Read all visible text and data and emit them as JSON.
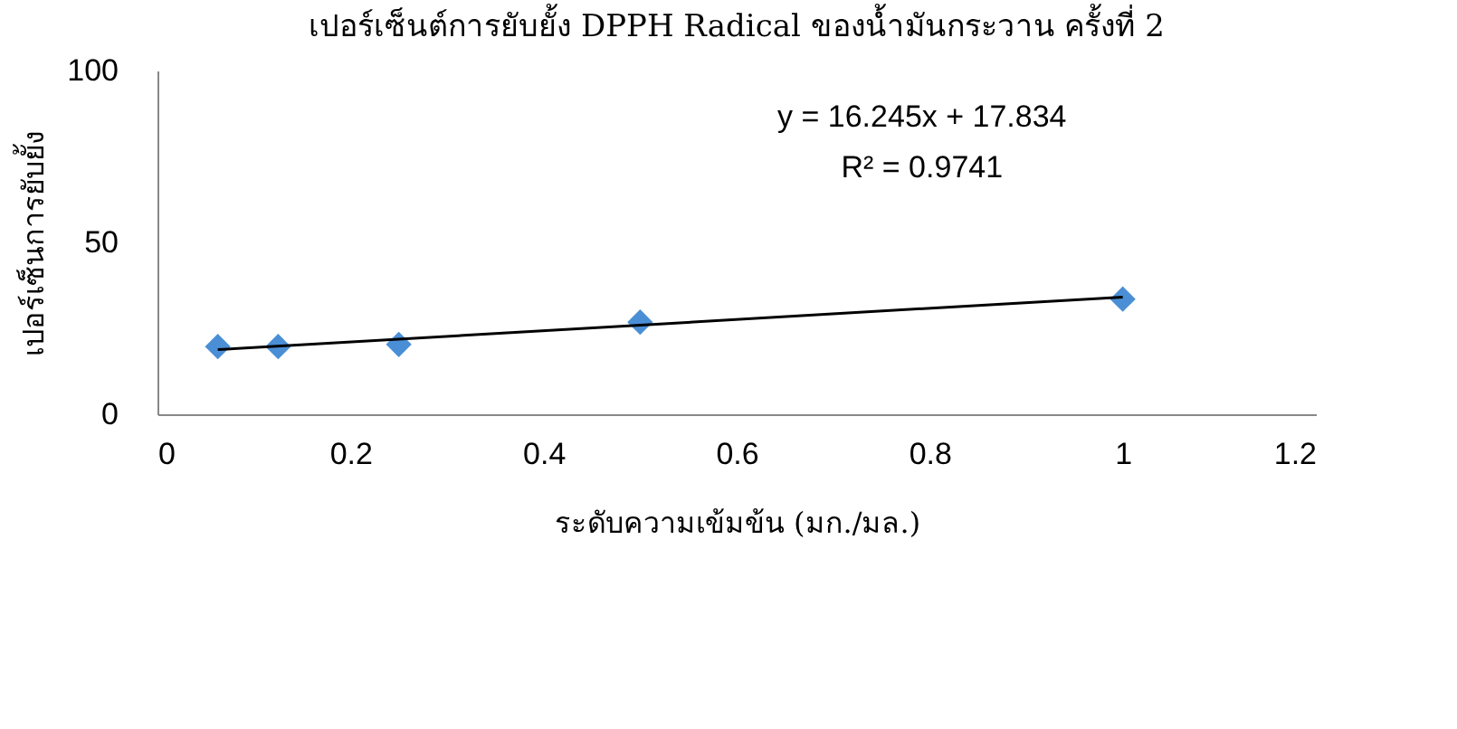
{
  "chart_data": {
    "type": "scatter",
    "title": "เปอร์เซ็นต์การยับยั้ง DPPH Radical ของน้ำมันกระวาน ครั้งที่ 2",
    "xlabel": "ระดับความเข้มข้น (มก./มล.)",
    "ylabel": "เปอร์เซ็นการยับยั้ง",
    "annotations": [
      "y = 16.245x + 17.834",
      "R² = 0.9741"
    ],
    "x": [
      0.0625,
      0.125,
      0.25,
      0.5,
      1
    ],
    "series": [
      {
        "color": "#4a8fd6",
        "values": [
          19.7,
          19.7,
          20.3,
          26.8,
          33.5
        ],
        "marker": "diamond"
      },
      {
        "type": "line",
        "color": "#000000",
        "x": [
          0.0625,
          1
        ],
        "values": [
          18.8,
          34.1
        ],
        "marker": "none"
      }
    ],
    "xlim": [
      0,
      1.2
    ],
    "xticks": [
      0,
      0.2,
      0.4,
      0.6,
      0.8,
      1,
      1.2
    ],
    "ylim": [
      0,
      100
    ],
    "yticks": [
      0,
      50,
      100
    ],
    "grid": false
  }
}
